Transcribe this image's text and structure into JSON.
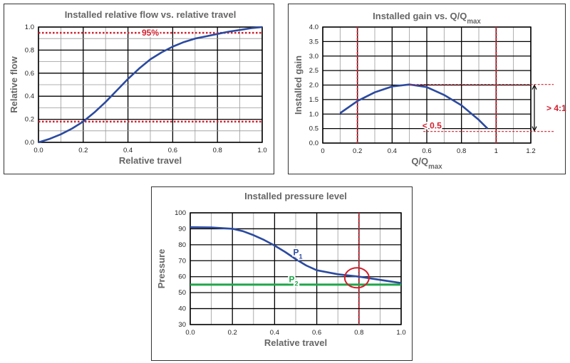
{
  "chart_data": [
    {
      "type": "line",
      "title": "Installed relative flow vs. relative travel",
      "xlabel": "Relative travel",
      "ylabel": "Relative flow",
      "xlim": [
        0,
        1.0
      ],
      "ylim": [
        0,
        1.0
      ],
      "xticks": [
        "0.0",
        "0.2",
        "0.4",
        "0.6",
        "0.8",
        "1.0"
      ],
      "yticks": [
        "0.0",
        "0.2",
        "0.4",
        "0.6",
        "0.8",
        "1.0"
      ],
      "grid": true,
      "series": [
        {
          "x": [
            0,
            0.05,
            0.1,
            0.15,
            0.2,
            0.25,
            0.3,
            0.35,
            0.4,
            0.45,
            0.5,
            0.55,
            0.6,
            0.65,
            0.7,
            0.75,
            0.8,
            0.85,
            0.9,
            0.95,
            1.0
          ],
          "values": [
            0,
            0.03,
            0.07,
            0.12,
            0.18,
            0.26,
            0.35,
            0.45,
            0.55,
            0.64,
            0.72,
            0.78,
            0.83,
            0.87,
            0.9,
            0.92,
            0.94,
            0.96,
            0.975,
            0.99,
            1.0
          ],
          "color": "#2b4aa0"
        }
      ],
      "hlines": [
        {
          "y": 0.95,
          "label": "95%",
          "color": "#d0202e"
        },
        {
          "y": 0.18,
          "label": "",
          "color": "#d0202e"
        }
      ]
    },
    {
      "type": "line",
      "title": "Installed gain vs. Q/Q",
      "title_sub": "max",
      "xlabel": "Q/Q",
      "xlabel_sub": "max",
      "ylabel": "Installed gain",
      "xlim": [
        0,
        1.2
      ],
      "ylim": [
        0,
        4.0
      ],
      "xticks": [
        "0",
        "0.2",
        "0.4",
        "0.6",
        "0.8",
        "1",
        "1.2"
      ],
      "yticks": [
        "0.0",
        "0.5",
        "1.0",
        "1.5",
        "2.0",
        "2.5",
        "3.0",
        "3.5",
        "4.0"
      ],
      "grid": true,
      "series": [
        {
          "x": [
            0.1,
            0.2,
            0.3,
            0.4,
            0.5,
            0.6,
            0.7,
            0.8,
            0.9,
            0.95
          ],
          "values": [
            1.03,
            1.45,
            1.75,
            1.95,
            2.02,
            1.93,
            1.66,
            1.3,
            0.8,
            0.5
          ],
          "color": "#2b4aa0"
        }
      ],
      "vlines": [
        {
          "x": 0.2,
          "color": "#d0202e"
        },
        {
          "x": 1.0,
          "color": "#d0202e"
        }
      ],
      "annotations": [
        {
          "text": "> 4:1",
          "color": "#d0202e"
        },
        {
          "text": "< 0.5",
          "color": "#d0202e"
        }
      ]
    },
    {
      "type": "line",
      "title": "Installed pressure level",
      "xlabel": "Relative travel",
      "ylabel": "Pressure",
      "xlim": [
        0,
        1.0
      ],
      "ylim": [
        30,
        100
      ],
      "xticks": [
        "0.0",
        "0.2",
        "0.4",
        "0.6",
        "0.8",
        "1.0"
      ],
      "yticks": [
        "30",
        "40",
        "50",
        "60",
        "70",
        "80",
        "90",
        "100"
      ],
      "grid": true,
      "series": [
        {
          "name": "P",
          "name_sub": "1",
          "x": [
            0,
            0.1,
            0.2,
            0.25,
            0.3,
            0.35,
            0.4,
            0.45,
            0.5,
            0.55,
            0.6,
            0.7,
            0.8,
            0.9,
            1.0
          ],
          "values": [
            91,
            90.8,
            90,
            88.5,
            86,
            83,
            79.5,
            75.5,
            71,
            67,
            64,
            61.5,
            60,
            58,
            56
          ],
          "color": "#2b4aa0"
        },
        {
          "name": "P",
          "name_sub": "2",
          "x": [
            0,
            1.0
          ],
          "values": [
            55,
            55
          ],
          "color": "#1fa64a"
        }
      ],
      "vlines": [
        {
          "x": 0.8,
          "color": "#d0202e"
        }
      ]
    }
  ]
}
